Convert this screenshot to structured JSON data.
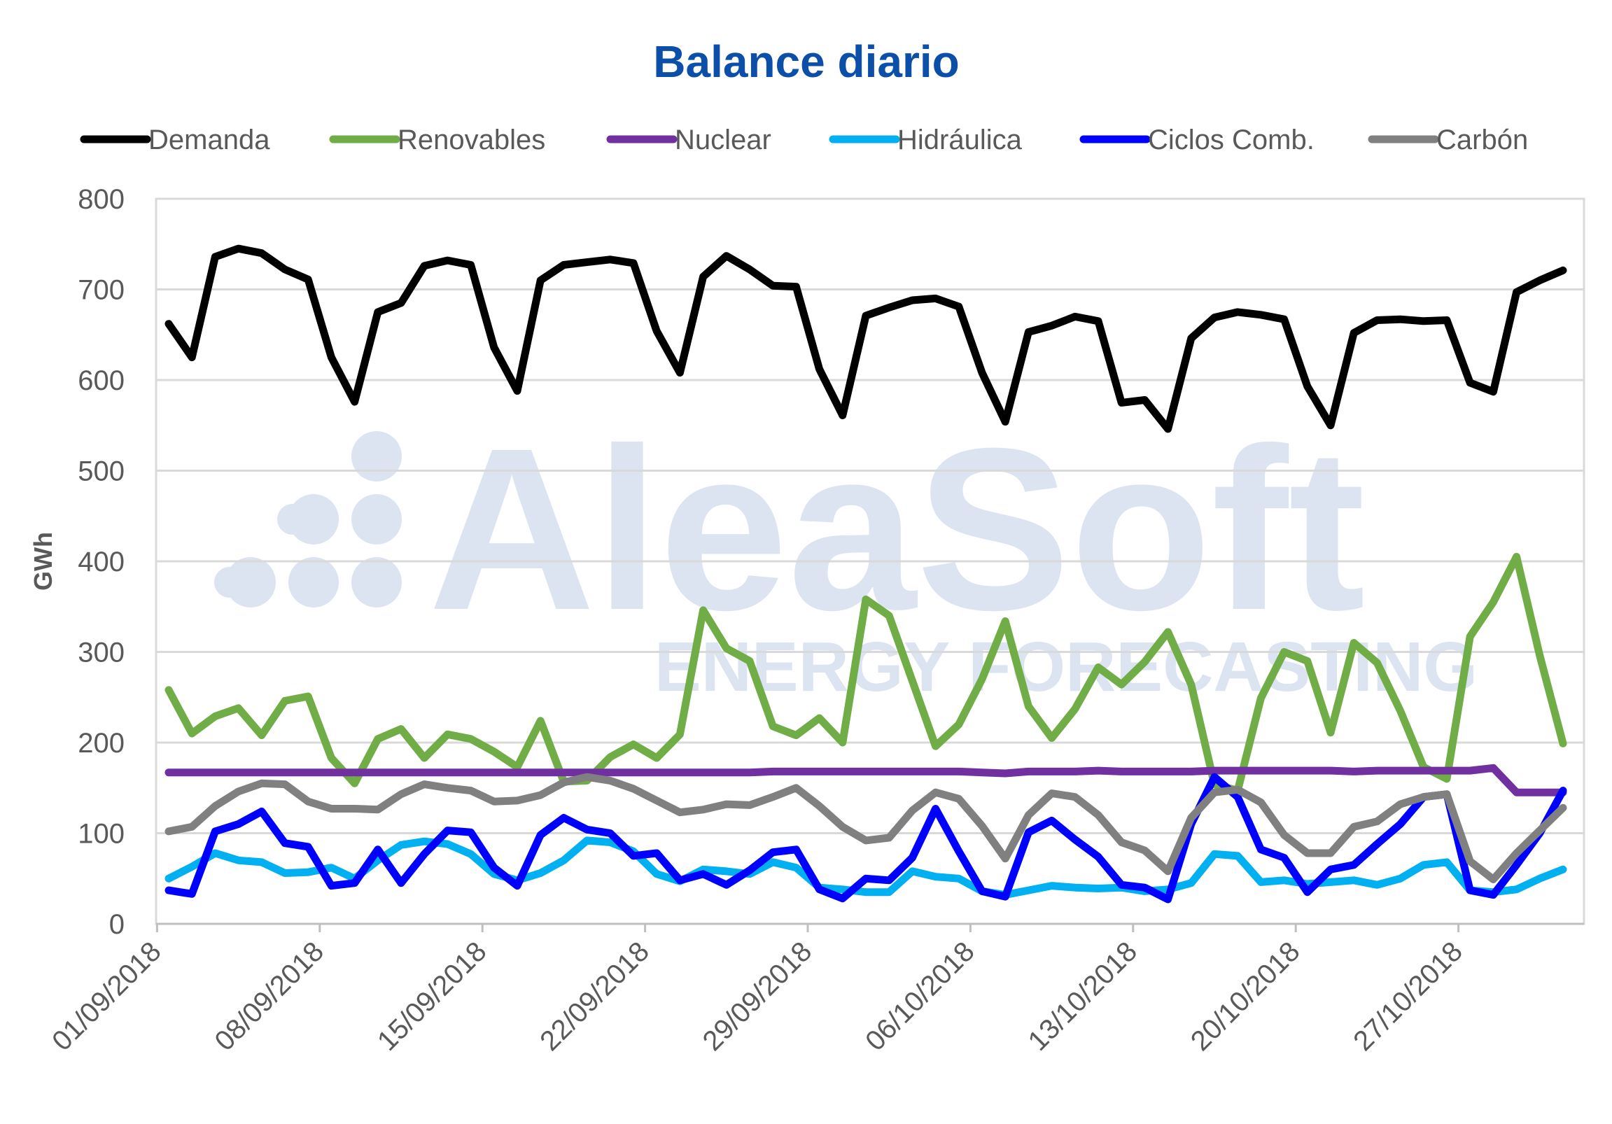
{
  "chart_data": {
    "type": "line",
    "title": "Balance diario",
    "ylabel": "GWh",
    "xlabel": "",
    "ylim": [
      0,
      800
    ],
    "yticks": [
      0,
      100,
      200,
      300,
      400,
      500,
      600,
      700,
      800
    ],
    "xtick_labels": [
      "01/09/2018",
      "08/09/2018",
      "15/09/2018",
      "22/09/2018",
      "29/09/2018",
      "06/10/2018",
      "13/10/2018",
      "20/10/2018",
      "27/10/2018"
    ],
    "legend_position": "top",
    "grid": true,
    "watermark": {
      "main": "AleaSoft",
      "sub": "ENERGY FORECASTING"
    },
    "x_start": "01/09/2018",
    "x_end": "31/10/2018",
    "series": [
      {
        "name": "Demanda",
        "color": "#000000",
        "values": [
          662,
          625,
          736,
          745,
          740,
          722,
          711,
          625,
          576,
          675,
          685,
          726,
          732,
          727,
          636,
          588,
          710,
          727,
          730,
          733,
          729,
          654,
          608,
          714,
          737,
          722,
          704,
          703,
          612,
          561,
          671,
          680,
          688,
          690,
          681,
          608,
          554,
          653,
          660,
          670,
          665,
          575,
          578,
          546,
          646,
          669,
          675,
          672,
          667,
          593,
          550,
          652,
          666,
          667,
          665,
          666,
          597,
          587,
          697,
          710,
          721
        ]
      },
      {
        "name": "Renovables",
        "color": "#70ad47",
        "values": [
          258,
          210,
          229,
          238,
          208,
          246,
          251,
          183,
          155,
          204,
          215,
          183,
          209,
          204,
          190,
          173,
          224,
          157,
          158,
          184,
          198,
          183,
          209,
          346,
          304,
          290,
          218,
          208,
          227,
          200,
          358,
          340,
          268,
          196,
          220,
          270,
          334,
          240,
          205,
          237,
          283,
          264,
          289,
          322,
          264,
          154,
          147,
          249,
          300,
          290,
          211,
          310,
          288,
          235,
          173,
          160,
          317,
          355,
          405,
          296,
          199
        ]
      },
      {
        "name": "Nuclear",
        "color": "#7030a0",
        "values": [
          167,
          167,
          167,
          167,
          167,
          167,
          167,
          167,
          167,
          167,
          167,
          167,
          167,
          167,
          167,
          167,
          167,
          167,
          167,
          167,
          167,
          167,
          167,
          167,
          167,
          167,
          168,
          168,
          168,
          168,
          168,
          168,
          168,
          168,
          168,
          167,
          166,
          168,
          168,
          168,
          169,
          168,
          168,
          168,
          168,
          169,
          169,
          169,
          169,
          169,
          169,
          168,
          169,
          169,
          169,
          169,
          169,
          172,
          145,
          145,
          145
        ]
      },
      {
        "name": "Hidráulica",
        "color": "#00b0f0",
        "values": [
          50,
          63,
          78,
          70,
          68,
          56,
          57,
          62,
          50,
          70,
          87,
          91,
          88,
          77,
          55,
          48,
          56,
          70,
          92,
          90,
          80,
          55,
          47,
          60,
          58,
          55,
          68,
          62,
          40,
          38,
          35,
          35,
          58,
          52,
          50,
          36,
          32,
          37,
          42,
          40,
          39,
          40,
          36,
          38,
          45,
          77,
          75,
          46,
          48,
          44,
          46,
          48,
          43,
          50,
          65,
          68,
          37,
          35,
          38,
          50,
          60
        ]
      },
      {
        "name": "Ciclos Comb.",
        "color": "#0000ff",
        "values": [
          37,
          33,
          102,
          110,
          124,
          89,
          85,
          42,
          45,
          82,
          45,
          77,
          103,
          101,
          62,
          42,
          98,
          117,
          104,
          100,
          75,
          78,
          48,
          55,
          43,
          59,
          79,
          82,
          38,
          28,
          50,
          48,
          73,
          127,
          80,
          36,
          30,
          101,
          114,
          93,
          74,
          43,
          40,
          27,
          110,
          162,
          140,
          82,
          73,
          35,
          60,
          65,
          88,
          110,
          140,
          143,
          37,
          32,
          65,
          100,
          147
        ]
      },
      {
        "name": "Carbón",
        "color": "#808080",
        "values": [
          102,
          107,
          130,
          146,
          155,
          154,
          135,
          127,
          127,
          126,
          143,
          154,
          150,
          147,
          135,
          136,
          142,
          156,
          162,
          158,
          149,
          136,
          123,
          126,
          132,
          131,
          140,
          150,
          130,
          107,
          92,
          95,
          125,
          145,
          138,
          108,
          72,
          120,
          144,
          140,
          120,
          90,
          81,
          58,
          117,
          145,
          148,
          134,
          98,
          78,
          78,
          107,
          113,
          132,
          140,
          143,
          69,
          49,
          78,
          103,
          128
        ]
      }
    ]
  }
}
